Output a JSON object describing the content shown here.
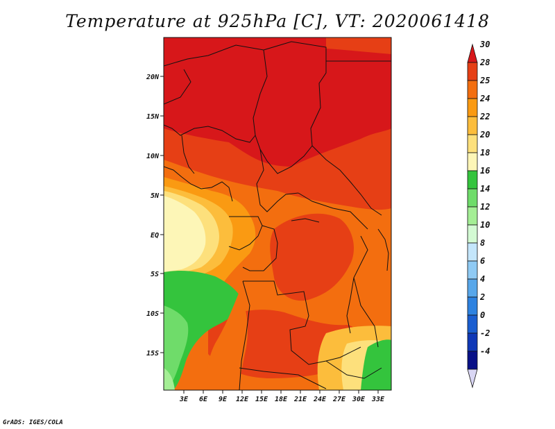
{
  "title": "Temperature at 925hPa [C], VT: 2020061418",
  "credit": "GrADS: IGES/COLA",
  "map": {
    "lat_labels": [
      "20N",
      "15N",
      "10N",
      "5N",
      "EQ",
      "5S",
      "10S",
      "15S"
    ],
    "lon_labels": [
      "3E",
      "6E",
      "9E",
      "12E",
      "15E",
      "18E",
      "21E",
      "24E",
      "27E",
      "30E",
      "33E"
    ]
  },
  "colorbar": {
    "labels": [
      "30",
      "28",
      "25",
      "24",
      "22",
      "20",
      "18",
      "16",
      "14",
      "12",
      "10",
      "8",
      "6",
      "4",
      "2",
      "0",
      "-2",
      "-4"
    ],
    "colors": [
      "#d7171a",
      "#e63f15",
      "#f36e0f",
      "#fa9a12",
      "#fcbd3c",
      "#fde07c",
      "#fdf6b7",
      "#34c43d",
      "#6fdc6a",
      "#a4ee95",
      "#d3fad3",
      "#c4e6fb",
      "#8fcaf4",
      "#58a7ea",
      "#2d82e0",
      "#1a5ed0",
      "#0f38b7",
      "#081087",
      "#d9d6f4"
    ]
  }
}
